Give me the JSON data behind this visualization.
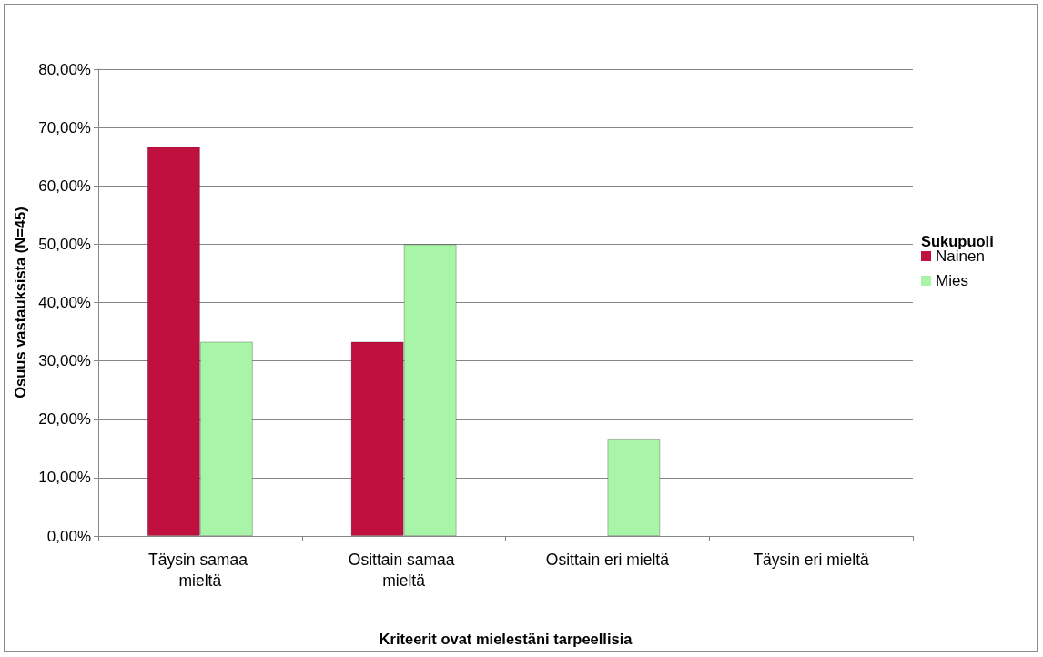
{
  "chart_data": {
    "type": "bar",
    "xlabel": "Kriteerit ovat mielestäni tarpeellisia",
    "ylabel": "Osuus vastauksista (N=45)",
    "legend_title": "Sukupuoli",
    "categories": [
      "Täysin samaa mieltä",
      "Osittain samaa mieltä",
      "Osittain eri mieltä",
      "Täysin eri mieltä"
    ],
    "series": [
      {
        "name": "Nainen",
        "color": "#c0103f",
        "values": [
          66.7,
          33.3,
          0,
          0
        ]
      },
      {
        "name": "Mies",
        "color": "#a8f5a8",
        "values": [
          33.3,
          50,
          16.7,
          0
        ]
      }
    ],
    "ylim": [
      0,
      80
    ],
    "yticks": [
      {
        "value": 0,
        "label": "0,00%"
      },
      {
        "value": 10,
        "label": "10,00%"
      },
      {
        "value": 20,
        "label": "20,00%"
      },
      {
        "value": 30,
        "label": "30,00%"
      },
      {
        "value": 40,
        "label": "40,00%"
      },
      {
        "value": 50,
        "label": "50,00%"
      },
      {
        "value": 60,
        "label": "60,00%"
      },
      {
        "value": 70,
        "label": "70,00%"
      },
      {
        "value": 80,
        "label": "80,00%"
      }
    ],
    "grid": "y",
    "legend": "right"
  }
}
